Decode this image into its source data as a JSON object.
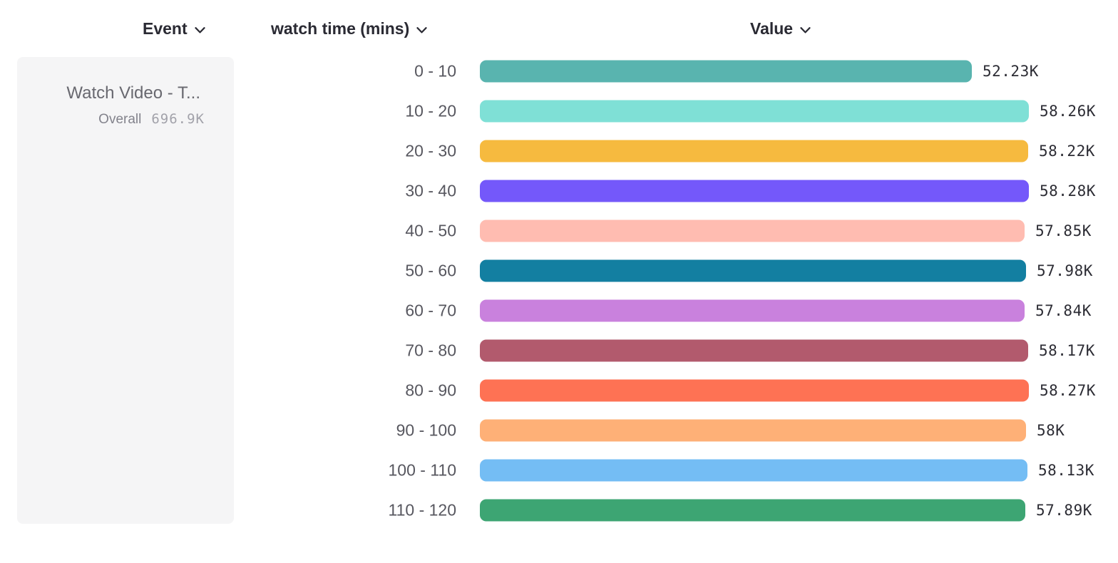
{
  "header": {
    "event_label": "Event",
    "breakdown_label": "watch time (mins)",
    "value_label": "Value"
  },
  "event_card": {
    "event_name": "Watch Video - T...",
    "overall_label": "Overall",
    "overall_value": "696.9K"
  },
  "chart_data": {
    "type": "bar",
    "orientation": "horizontal",
    "title": "",
    "xlabel": "Value",
    "ylabel": "watch time (mins)",
    "unit": "K",
    "xlim": [
      0,
      58.28
    ],
    "grid": false,
    "categories": [
      "0 - 10",
      "10 - 20",
      "20 - 30",
      "30 - 40",
      "40 - 50",
      "50 - 60",
      "60 - 70",
      "70 - 80",
      "80 - 90",
      "90 - 100",
      "100 - 110",
      "110 - 120"
    ],
    "values": [
      52.23,
      58.26,
      58.22,
      58.28,
      57.85,
      57.98,
      57.84,
      58.17,
      58.27,
      58.0,
      58.13,
      57.89
    ],
    "value_labels": [
      "52.23K",
      "58.26K",
      "58.22K",
      "58.28K",
      "57.85K",
      "57.98K",
      "57.84K",
      "58.17K",
      "58.27K",
      "58K",
      "58.13K",
      "57.89K"
    ],
    "bar_colors": [
      "#59b4af",
      "#7fe0d6",
      "#f6ba3f",
      "#7458fa",
      "#ffbcb1",
      "#137fa1",
      "#c981dd",
      "#b25a6d",
      "#fe7254",
      "#feb077",
      "#74bdf4",
      "#3da573"
    ]
  }
}
